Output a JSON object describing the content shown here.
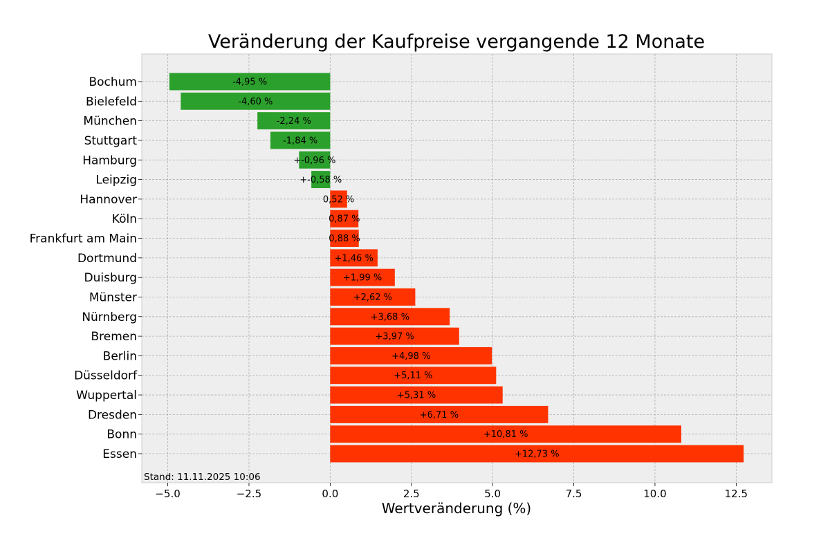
{
  "chart_data": {
    "type": "bar",
    "orientation": "horizontal",
    "title": "Veränderung der Kaufpreise vergangende 12 Monate",
    "xlabel": "Wertveränderung (%)",
    "ylabel": "",
    "xlim": [
      -5.8,
      13.6
    ],
    "xticks": [
      -5.0,
      -2.5,
      0.0,
      2.5,
      5.0,
      7.5,
      10.0,
      12.5
    ],
    "xtick_labels": [
      "−5.0",
      "−2.5",
      "0.0",
      "2.5",
      "5.0",
      "7.5",
      "10.0",
      "12.5"
    ],
    "grid": true,
    "negative_color": "#2ca02c",
    "positive_color": "#ff3300",
    "background_color": "#eeeeee",
    "categories": [
      "Bochum",
      "Bielefeld",
      "München",
      "Stuttgart",
      "Hamburg",
      "Leipzig",
      "Hannover",
      "Köln",
      "Frankfurt am Main",
      "Dortmund",
      "Duisburg",
      "Münster",
      "Nürnberg",
      "Bremen",
      "Berlin",
      "Düsseldorf",
      "Wuppertal",
      "Dresden",
      "Bonn",
      "Essen"
    ],
    "values": [
      -4.95,
      -4.6,
      -2.24,
      -1.84,
      -0.96,
      -0.58,
      0.52,
      0.87,
      0.88,
      1.46,
      1.99,
      2.62,
      3.68,
      3.97,
      4.98,
      5.11,
      5.31,
      6.71,
      10.81,
      12.73
    ],
    "data_labels": [
      "-4,95 %",
      "-4,60 %",
      "-2,24 %",
      "-1,84 %",
      "+-0,96 %",
      "+-0,58 %",
      "0,52 %",
      "0,87 %",
      "0,88 %",
      "+1,46 %",
      "+1,99 %",
      "+2,62 %",
      "+3,68 %",
      "+3,97 %",
      "+4,98 %",
      "+5,11 %",
      "+5,31 %",
      "+6,71 %",
      "+10,81 %",
      "+12,73 %"
    ],
    "annotation": "Stand: 11.11.2025 10:06"
  }
}
